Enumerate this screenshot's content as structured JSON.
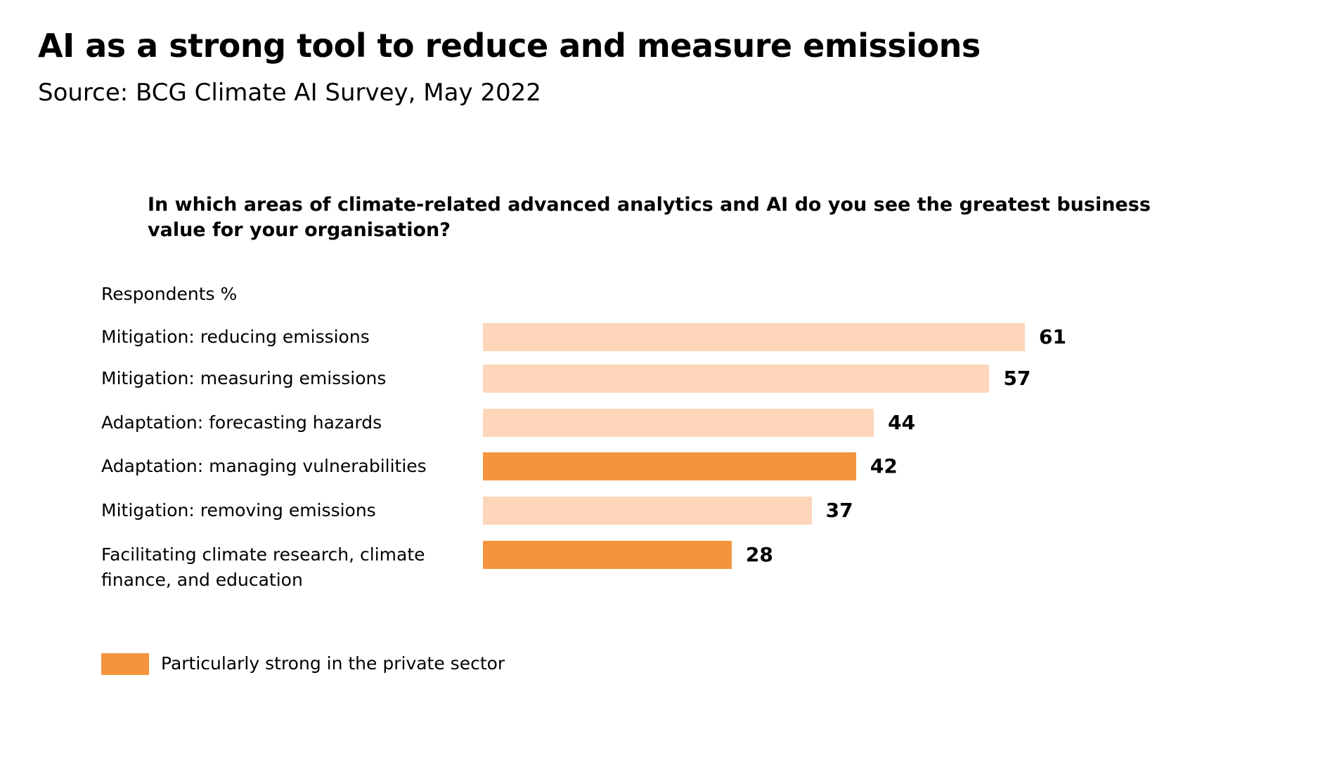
{
  "chart_data": {
    "type": "bar",
    "title": "AI as a strong tool to reduce and measure emissions",
    "subtitle": "Source: BCG Climate AI Survey, May 2022",
    "question": "In which areas of climate-related advanced analytics and AI do you see the greatest business value for your organisation?",
    "y_label": "Respondents %",
    "categories": [
      "Mitigation: reducing emissions",
      "Mitigation: measuring emissions",
      "Adaptation: forecasting hazards",
      "Adaptation: managing vulnerabilities",
      "Mitigation: removing emissions",
      "Facilitating climate research, climate finance, and education"
    ],
    "values": [
      61,
      57,
      44,
      42,
      37,
      28
    ],
    "colors": [
      "#fdd5b8",
      "#fdd5b8",
      "#fdd5b8",
      "#f4943c",
      "#fdd5b8",
      "#f4943c"
    ],
    "legend": {
      "label": "Particularly strong in the private sector",
      "color": "#f4943c"
    }
  }
}
